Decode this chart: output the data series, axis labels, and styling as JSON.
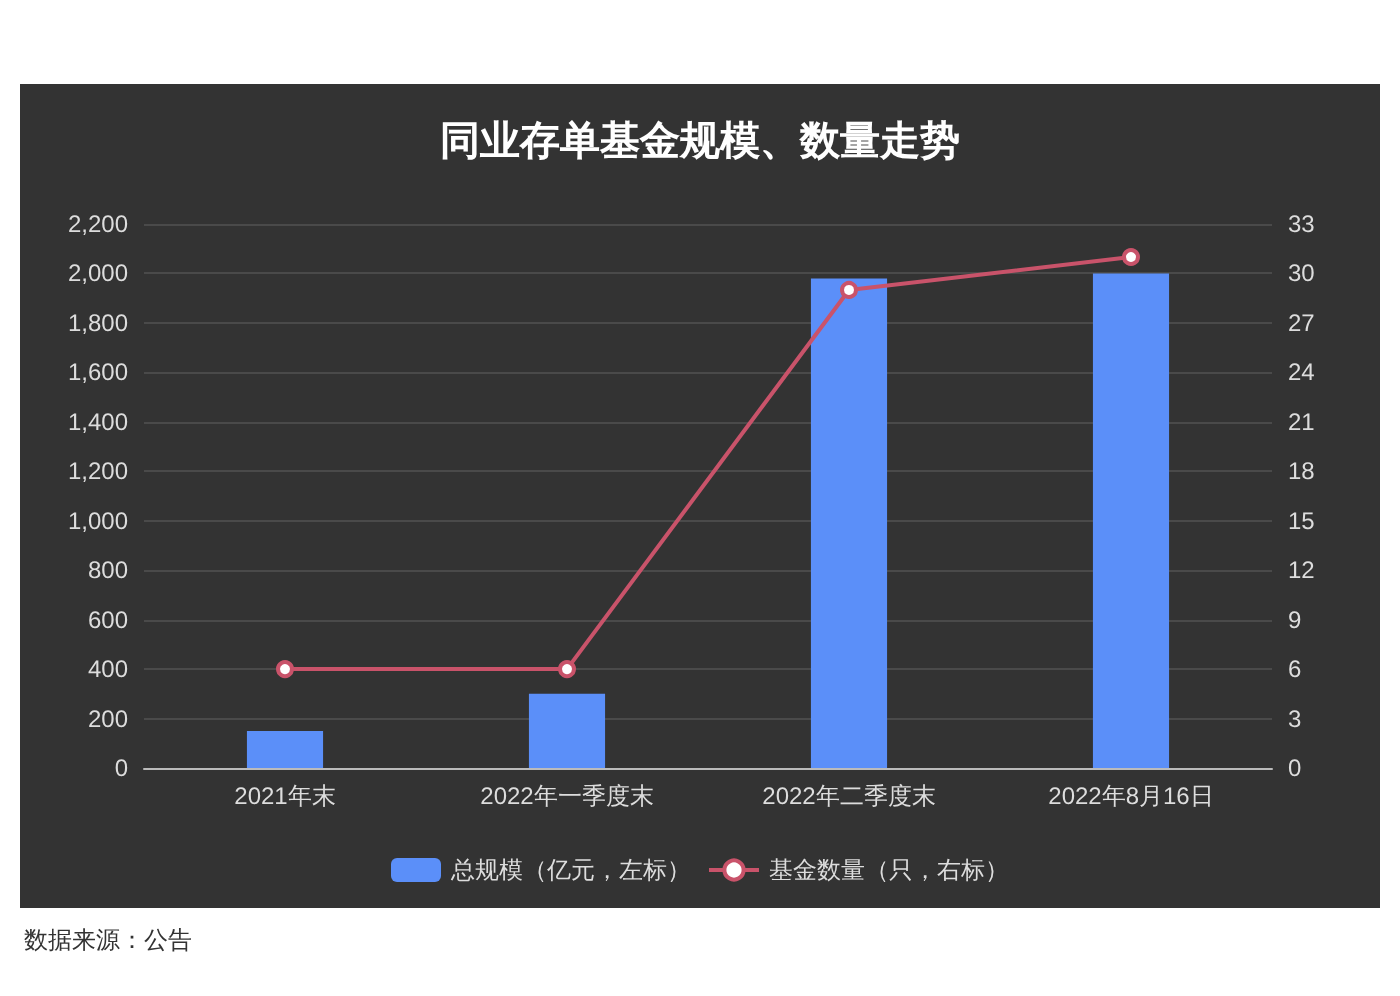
{
  "chart_data": {
    "type": "bar",
    "title": "同业存单基金规模、数量走势",
    "categories": [
      "2021年末",
      "2022年一季度末",
      "2022年二季度末",
      "2022年8月16日"
    ],
    "series": [
      {
        "name": "总规模（亿元，左标）",
        "color": "#5b8ff9",
        "values": [
          150,
          300,
          1980,
          2000
        ]
      },
      {
        "name": "基金数量（只，右标）",
        "type": "line",
        "axis": "y2",
        "color": "#c9536a",
        "values": [
          6,
          6,
          29,
          31
        ],
        "marker": "circle"
      }
    ],
    "ylim": [
      0,
      2200
    ],
    "yticks": [
      0,
      200,
      400,
      600,
      800,
      {
        "value": 1000,
        "label": "1,000"
      },
      {
        "value": 1200,
        "label": "1,200"
      },
      {
        "value": 1400,
        "label": "1,400"
      },
      {
        "value": 1600,
        "label": "1,600"
      },
      {
        "value": 1800,
        "label": "1,800"
      },
      {
        "value": 2000,
        "label": "2,000"
      },
      {
        "value": 2200,
        "label": "2,200"
      }
    ],
    "y2lim": [
      0,
      33
    ],
    "y2ticks": [
      0,
      3,
      6,
      9,
      12,
      15,
      18,
      21,
      24,
      27,
      30,
      33
    ],
    "grid": "y",
    "legend": "bottom",
    "annotations": [
      "数据来源：公告"
    ]
  }
}
